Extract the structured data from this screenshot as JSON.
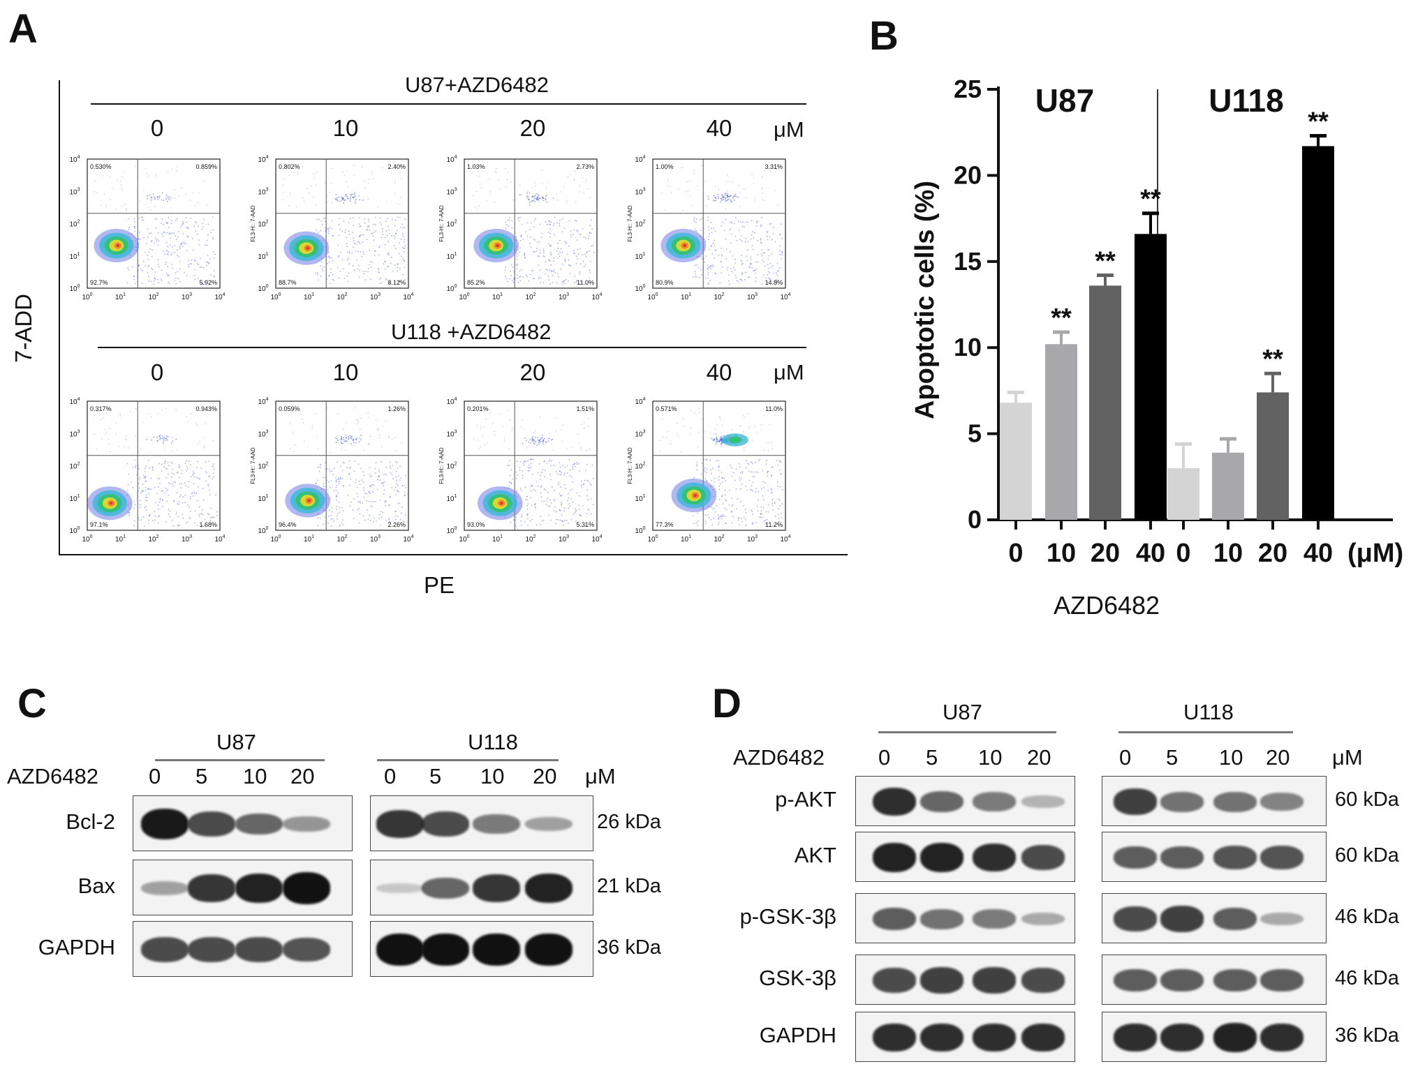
{
  "panels": {
    "a": "A",
    "b": "B",
    "c": "C",
    "d": "D"
  },
  "panel_a": {
    "y_label": "7-ADD",
    "x_label": "PE",
    "unit": "μM",
    "rows": [
      {
        "title": "U87+AZD6482",
        "plots": [
          {
            "dose": "0",
            "ul": "0.530%",
            "ur": "0.859%",
            "ll": "92.7%",
            "lr": "5.92%",
            "cluster_x": 0.22,
            "cluster_y": 0.67,
            "upper_pop": 0.05
          },
          {
            "dose": "10",
            "ul": "0.802%",
            "ur": "2.40%",
            "ll": "88.7%",
            "lr": "8.12%",
            "cluster_x": 0.23,
            "cluster_y": 0.69,
            "upper_pop": 0.2
          },
          {
            "dose": "20",
            "ul": "1.03%",
            "ur": "2.73%",
            "ll": "85.2%",
            "lr": "11.0%",
            "cluster_x": 0.24,
            "cluster_y": 0.67,
            "upper_pop": 0.25
          },
          {
            "dose": "40",
            "ul": "1.00%",
            "ur": "3.31%",
            "ll": "80.9%",
            "lr": "14.8%",
            "cluster_x": 0.23,
            "cluster_y": 0.67,
            "upper_pop": 0.3
          }
        ]
      },
      {
        "title": "U118 +AZD6482",
        "plots": [
          {
            "dose": "0",
            "ul": "0.317%",
            "ur": "0.943%",
            "ll": "97.1%",
            "lr": "1.68%",
            "cluster_x": 0.17,
            "cluster_y": 0.79,
            "upper_pop": 0.05
          },
          {
            "dose": "10",
            "ul": "0.059%",
            "ur": "1.26%",
            "ll": "96.4%",
            "lr": "2.26%",
            "cluster_x": 0.24,
            "cluster_y": 0.77,
            "upper_pop": 0.2
          },
          {
            "dose": "20",
            "ul": "0.201%",
            "ur": "1.51%",
            "ll": "93.0%",
            "lr": "5.31%",
            "cluster_x": 0.27,
            "cluster_y": 0.79,
            "upper_pop": 0.2
          },
          {
            "dose": "40",
            "ul": "0.571%",
            "ur": "11.0%",
            "ll": "77.3%",
            "lr": "11.2%",
            "cluster_x": 0.31,
            "cluster_y": 0.73,
            "upper_pop": 1.0
          }
        ]
      }
    ],
    "plot_axis_y": "FL3-H:: 7-AAD",
    "tick_labels": [
      "10",
      "10",
      "10",
      "10",
      "10"
    ],
    "tick_exps": [
      "0",
      "1",
      "2",
      "3",
      "4"
    ]
  },
  "chart_data": {
    "type": "bar",
    "ylabel": "Apoptotic cells (%)",
    "xlabel": "AZD6482",
    "unit": "(μM)",
    "ylim": [
      0,
      25
    ],
    "yticks": [
      "0",
      "5",
      "10",
      "15",
      "20",
      "25"
    ],
    "groups": [
      {
        "name": "U87",
        "categories": [
          "0",
          "10",
          "20",
          "40"
        ],
        "values": [
          6.8,
          10.2,
          13.6,
          16.6
        ],
        "errors": [
          0.6,
          0.7,
          0.6,
          1.2
        ],
        "sig": [
          "",
          "**",
          "**",
          "**"
        ]
      },
      {
        "name": "U118",
        "categories": [
          "0",
          "10",
          "20",
          "40"
        ],
        "values": [
          3.0,
          3.9,
          7.4,
          21.7
        ],
        "errors": [
          1.4,
          0.8,
          1.1,
          0.6
        ],
        "sig": [
          "",
          "",
          "**",
          "**"
        ]
      }
    ],
    "colors": [
      "#d4d4d4",
      "#a8a8aa",
      "#626262",
      "#000000"
    ]
  },
  "panel_c": {
    "treatment_label": "AZD6482",
    "unit": "μM",
    "cell_lines": [
      "U87",
      "U118"
    ],
    "doses": [
      "0",
      "5",
      "10",
      "20"
    ],
    "proteins": [
      {
        "name": "Bcl-2",
        "mw": "26 kDa",
        "u87": [
          0.95,
          0.7,
          0.55,
          0.3
        ],
        "u118": [
          0.8,
          0.7,
          0.45,
          0.25
        ]
      },
      {
        "name": "Bax",
        "mw": "21 kDa",
        "u87": [
          0.25,
          0.8,
          0.9,
          1.0
        ],
        "u118": [
          0.05,
          0.55,
          0.8,
          0.9
        ]
      },
      {
        "name": "GAPDH",
        "mw": "36 kDa",
        "u87": [
          0.7,
          0.7,
          0.7,
          0.65
        ],
        "u118": [
          1.0,
          1.0,
          1.0,
          1.0
        ]
      }
    ]
  },
  "panel_d": {
    "treatment_label": "AZD6482",
    "unit": "μM",
    "cell_lines": [
      "U87",
      "U118"
    ],
    "doses": [
      "0",
      "5",
      "10",
      "20"
    ],
    "proteins": [
      {
        "name": "p-AKT",
        "mw": "60 kDa",
        "u87": [
          0.85,
          0.55,
          0.45,
          0.15
        ],
        "u118": [
          0.75,
          0.5,
          0.5,
          0.4
        ]
      },
      {
        "name": "AKT",
        "mw": "60 kDa",
        "u87": [
          0.9,
          0.9,
          0.85,
          0.7
        ],
        "u118": [
          0.6,
          0.6,
          0.65,
          0.65
        ]
      },
      {
        "name": "p-GSK-3β",
        "mw": "46 kDa",
        "u87": [
          0.6,
          0.5,
          0.45,
          0.2
        ],
        "u118": [
          0.7,
          0.75,
          0.6,
          0.2
        ]
      },
      {
        "name": "GSK-3β",
        "mw": "46 kDa",
        "u87": [
          0.7,
          0.75,
          0.75,
          0.7
        ],
        "u118": [
          0.6,
          0.6,
          0.6,
          0.6
        ]
      },
      {
        "name": "GAPDH",
        "mw": "36 kDa",
        "u87": [
          0.85,
          0.85,
          0.85,
          0.85
        ],
        "u118": [
          0.85,
          0.85,
          0.9,
          0.85
        ]
      }
    ]
  }
}
